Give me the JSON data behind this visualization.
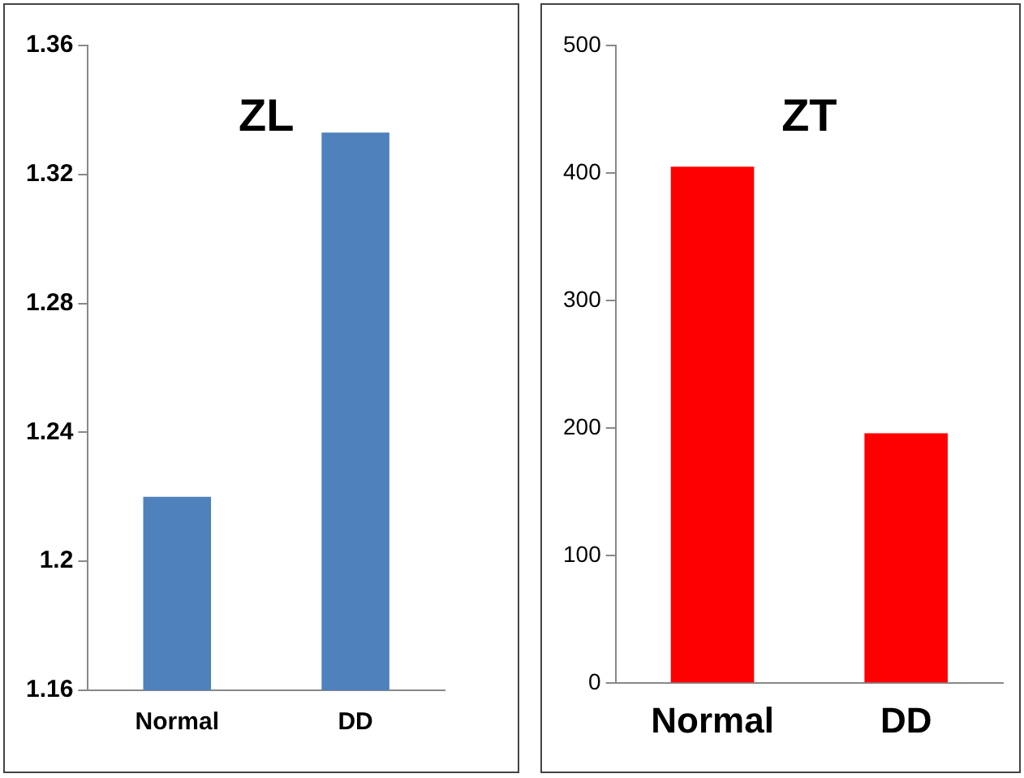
{
  "chart_data": [
    {
      "type": "bar",
      "title": "ZL",
      "categories": [
        "Normal",
        "DD"
      ],
      "values": [
        1.22,
        1.333
      ],
      "color": "#4f81bd",
      "ylim": [
        1.16,
        1.36
      ],
      "yticks": [
        1.16,
        1.2,
        1.24,
        1.28,
        1.32,
        1.36
      ],
      "grid": false,
      "legend": false
    },
    {
      "type": "bar",
      "title": "ZT",
      "categories": [
        "Normal",
        "DD"
      ],
      "values": [
        405,
        196
      ],
      "color": "#ff0000",
      "ylim": [
        0,
        500
      ],
      "yticks": [
        0,
        100,
        200,
        300,
        400,
        500
      ],
      "grid": false,
      "legend": false
    }
  ]
}
